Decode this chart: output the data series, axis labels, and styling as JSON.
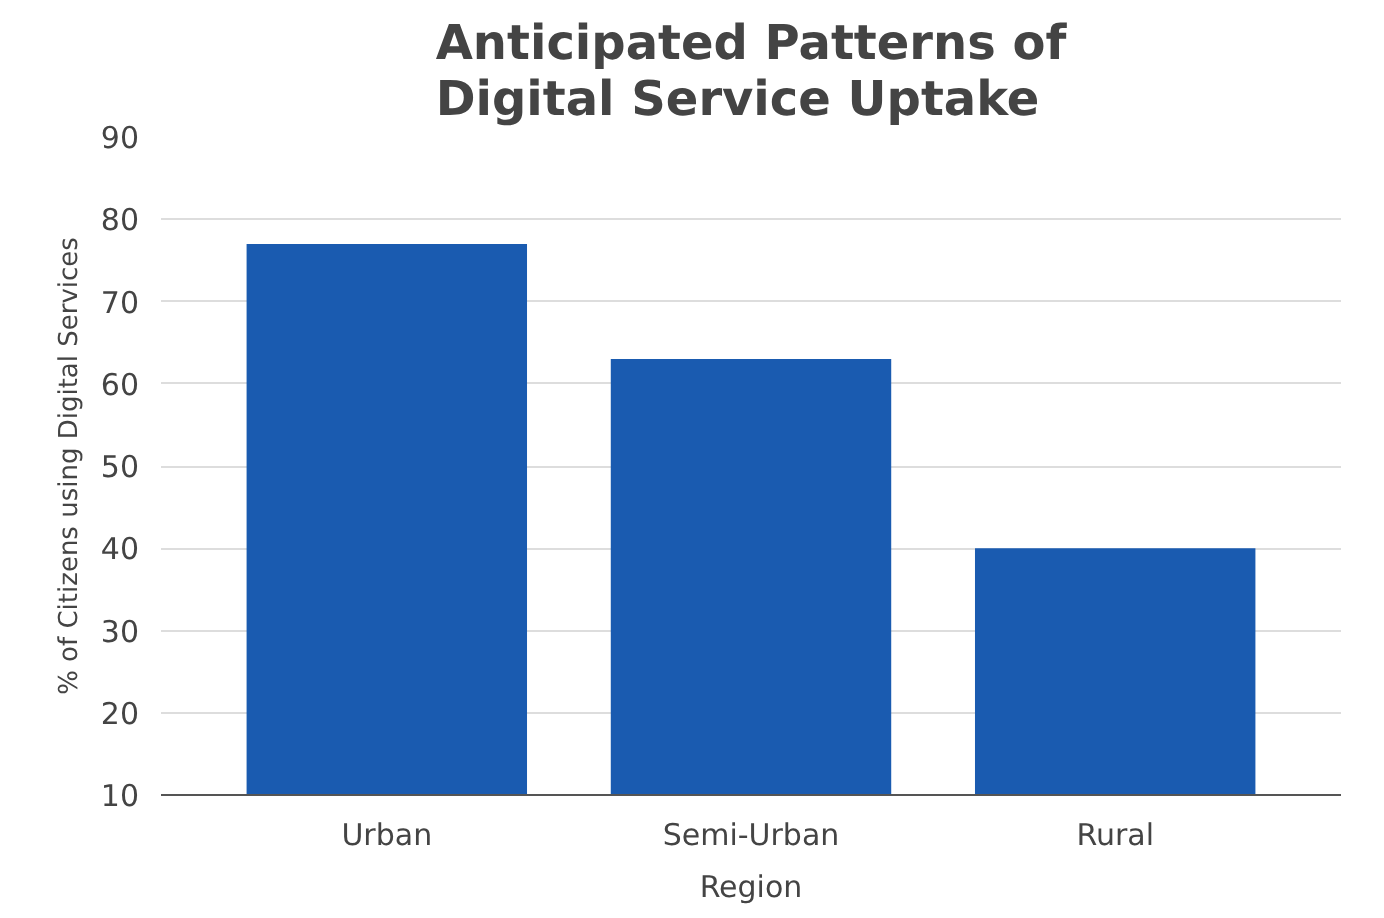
{
  "chart_data": {
    "type": "bar",
    "title": "Anticipated Patterns of\nDigital Service Uptake",
    "xlabel": "Region",
    "ylabel": "% of Citizens using Digital Services",
    "categories": [
      "Urban",
      "Semi-Urban",
      "Rural"
    ],
    "values": [
      77,
      63,
      40
    ],
    "color": "#1a5bb0",
    "ylim": [
      10,
      90
    ],
    "yticks": [
      10,
      20,
      30,
      40,
      50,
      60,
      70,
      80,
      90
    ],
    "grid": "y"
  }
}
